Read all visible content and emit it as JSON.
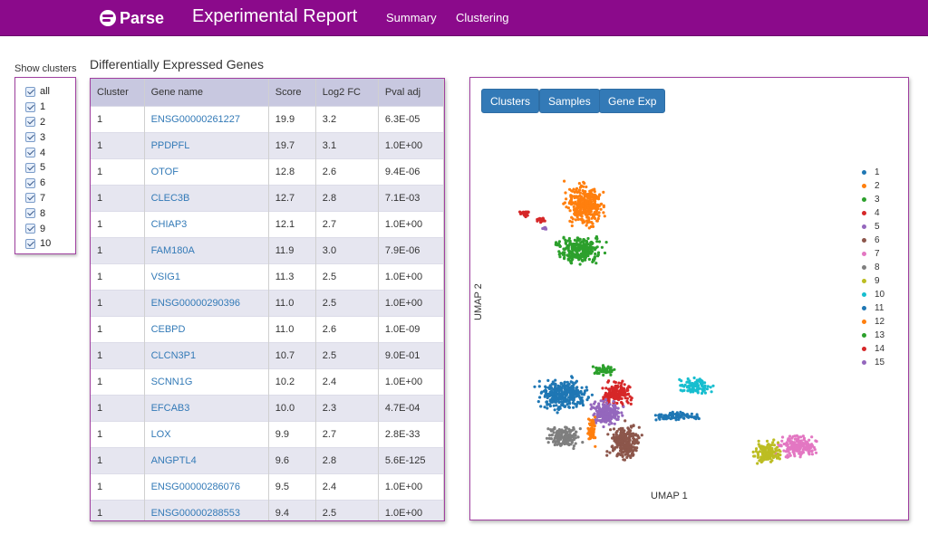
{
  "nav": {
    "brand": "Parse",
    "title": "Experimental Report",
    "links": [
      "Summary",
      "Clustering"
    ]
  },
  "cluster_filter": {
    "title": "Show clusters",
    "options": [
      "all",
      "1",
      "2",
      "3",
      "4",
      "5",
      "6",
      "7",
      "8",
      "9",
      "10"
    ]
  },
  "deg": {
    "title": "Differentially Expressed Genes",
    "columns": [
      "Cluster",
      "Gene name",
      "Score",
      "Log2 FC",
      "Pval adj"
    ],
    "rows": [
      [
        "1",
        "ENSG00000261227",
        "19.9",
        "3.2",
        "6.3E-05"
      ],
      [
        "1",
        "PPDPFL",
        "19.7",
        "3.1",
        "1.0E+00"
      ],
      [
        "1",
        "OTOF",
        "12.8",
        "2.6",
        "9.4E-06"
      ],
      [
        "1",
        "CLEC3B",
        "12.7",
        "2.8",
        "7.1E-03"
      ],
      [
        "1",
        "CHIAP3",
        "12.1",
        "2.7",
        "1.0E+00"
      ],
      [
        "1",
        "FAM180A",
        "11.9",
        "3.0",
        "7.9E-06"
      ],
      [
        "1",
        "VSIG1",
        "11.3",
        "2.5",
        "1.0E+00"
      ],
      [
        "1",
        "ENSG00000290396",
        "11.0",
        "2.5",
        "1.0E+00"
      ],
      [
        "1",
        "CEBPD",
        "11.0",
        "2.6",
        "1.0E-09"
      ],
      [
        "1",
        "CLCN3P1",
        "10.7",
        "2.5",
        "9.0E-01"
      ],
      [
        "1",
        "SCNN1G",
        "10.2",
        "2.4",
        "1.0E+00"
      ],
      [
        "1",
        "EFCAB3",
        "10.0",
        "2.3",
        "4.7E-04"
      ],
      [
        "1",
        "LOX",
        "9.9",
        "2.7",
        "2.8E-33"
      ],
      [
        "1",
        "ANGPTL4",
        "9.6",
        "2.8",
        "5.6E-125"
      ],
      [
        "1",
        "ENSG00000286076",
        "9.5",
        "2.4",
        "1.0E+00"
      ],
      [
        "1",
        "ENSG00000288553",
        "9.4",
        "2.5",
        "1.0E+00"
      ]
    ]
  },
  "plot": {
    "buttons": [
      "Clusters",
      "Samples",
      "Gene Exp"
    ],
    "xlabel": "UMAP 1",
    "ylabel": "UMAP 2",
    "legend": [
      {
        "label": "1",
        "color": "#1f77b4"
      },
      {
        "label": "2",
        "color": "#ff7f0e"
      },
      {
        "label": "3",
        "color": "#2ca02c"
      },
      {
        "label": "4",
        "color": "#d62728"
      },
      {
        "label": "5",
        "color": "#9467bd"
      },
      {
        "label": "6",
        "color": "#8c564b"
      },
      {
        "label": "7",
        "color": "#e377c2"
      },
      {
        "label": "8",
        "color": "#7f7f7f"
      },
      {
        "label": "9",
        "color": "#bcbd22"
      },
      {
        "label": "10",
        "color": "#17becf"
      },
      {
        "label": "11",
        "color": "#1f77b4"
      },
      {
        "label": "12",
        "color": "#ff7f0e"
      },
      {
        "label": "13",
        "color": "#2ca02c"
      },
      {
        "label": "14",
        "color": "#d62728"
      },
      {
        "label": "15",
        "color": "#9467bd"
      }
    ]
  },
  "colors": {
    "navbar": "#8b0a8b",
    "panel_border": "#a040a0",
    "button": "#337ab7",
    "link": "#337ab7"
  }
}
